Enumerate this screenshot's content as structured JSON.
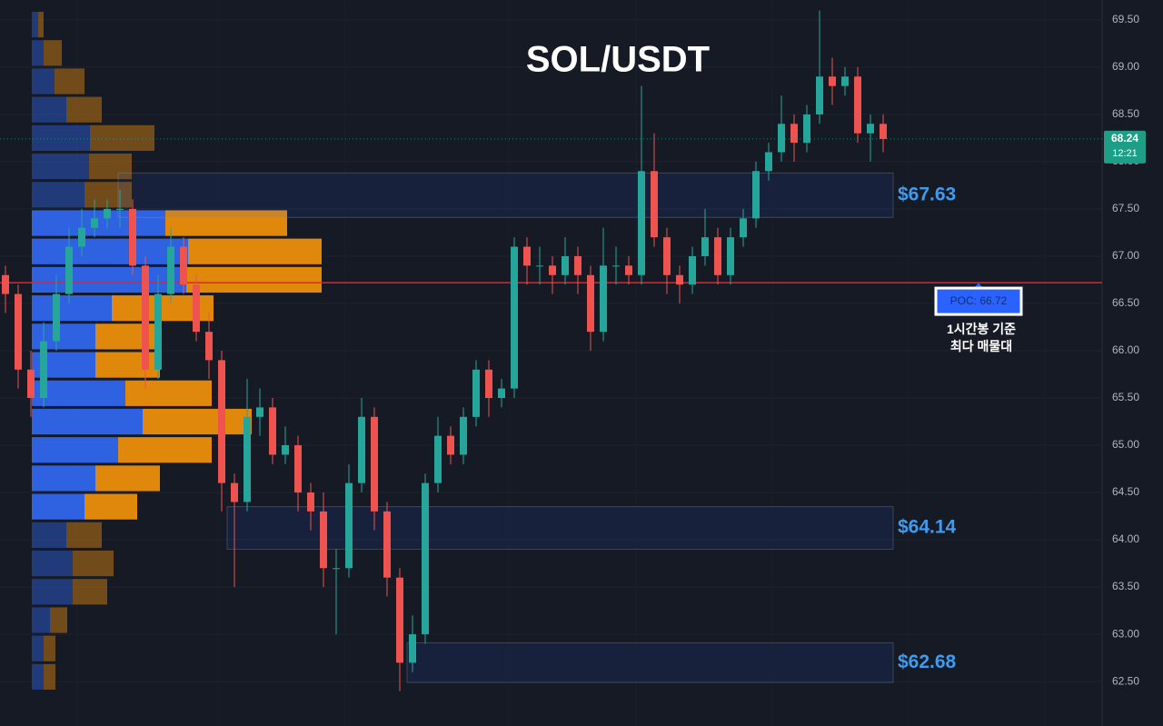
{
  "chart_data": {
    "type": "candlestick",
    "title": "SOL/USDT",
    "open": [
      66.8,
      66.6,
      65.8,
      65.5,
      66.1,
      66.6,
      67.1,
      67.3,
      67.4,
      67.5,
      67.5,
      66.9,
      65.8,
      66.6,
      67.1,
      66.7,
      66.2,
      65.9,
      64.6,
      64.4,
      65.3,
      65.4,
      64.9,
      65.0,
      64.5,
      64.3,
      63.7,
      63.7,
      64.6,
      65.3,
      64.3,
      63.6,
      62.7,
      63.0,
      64.6,
      65.1,
      64.9,
      65.3,
      65.8,
      65.5,
      65.6,
      67.1,
      66.9,
      66.9,
      66.8,
      67.0,
      66.8,
      66.2,
      66.9,
      66.9,
      66.8,
      67.9,
      67.2,
      66.8,
      66.7,
      67.0,
      67.2,
      66.8,
      67.2,
      67.4,
      67.9,
      68.1,
      68.4,
      68.2,
      68.5,
      68.9,
      68.8,
      68.9,
      68.3,
      68.4
    ],
    "high": [
      66.9,
      66.7,
      66.0,
      66.3,
      66.8,
      67.3,
      67.5,
      67.6,
      67.6,
      67.7,
      67.6,
      67.0,
      66.8,
      67.3,
      67.2,
      66.8,
      66.4,
      66.0,
      64.7,
      65.7,
      65.6,
      65.5,
      65.2,
      65.1,
      64.6,
      64.5,
      63.9,
      64.8,
      65.5,
      65.4,
      64.4,
      63.7,
      63.2,
      64.7,
      65.3,
      65.2,
      65.4,
      65.9,
      65.9,
      65.7,
      67.2,
      67.2,
      67.1,
      67.0,
      67.2,
      67.1,
      66.9,
      67.3,
      67.1,
      67.0,
      68.8,
      68.3,
      67.3,
      66.9,
      67.1,
      67.5,
      67.3,
      67.3,
      67.5,
      68.0,
      68.2,
      68.7,
      68.5,
      68.6,
      69.6,
      69.1,
      69.0,
      69.0,
      68.5,
      68.5
    ],
    "low": [
      66.4,
      65.6,
      65.3,
      65.4,
      66.0,
      66.5,
      67.0,
      67.2,
      67.3,
      67.3,
      66.8,
      65.6,
      65.7,
      66.5,
      66.6,
      66.1,
      65.7,
      64.3,
      63.5,
      64.3,
      65.1,
      64.8,
      64.8,
      64.3,
      64.1,
      63.5,
      63.0,
      63.6,
      64.5,
      64.1,
      63.4,
      62.4,
      62.6,
      62.9,
      64.5,
      64.8,
      64.8,
      65.2,
      65.3,
      65.4,
      65.5,
      66.7,
      66.7,
      66.6,
      66.7,
      66.6,
      66.0,
      66.1,
      66.7,
      66.7,
      66.7,
      67.1,
      66.6,
      66.5,
      66.6,
      66.9,
      66.7,
      66.7,
      67.1,
      67.3,
      67.8,
      68.0,
      68.0,
      68.1,
      68.4,
      68.6,
      68.7,
      68.2,
      68.0,
      68.1
    ],
    "close": [
      66.6,
      65.8,
      65.5,
      66.1,
      66.6,
      67.1,
      67.3,
      67.4,
      67.5,
      67.5,
      66.9,
      65.8,
      66.6,
      67.1,
      66.7,
      66.2,
      65.9,
      64.6,
      64.4,
      65.3,
      65.4,
      64.9,
      65.0,
      64.5,
      64.3,
      63.7,
      63.7,
      64.6,
      65.3,
      64.3,
      63.6,
      62.7,
      63.0,
      64.6,
      65.1,
      64.9,
      65.3,
      65.8,
      65.5,
      65.6,
      67.1,
      66.9,
      66.9,
      66.8,
      67.0,
      66.8,
      66.2,
      66.9,
      66.9,
      66.8,
      67.9,
      67.2,
      66.8,
      66.7,
      67.0,
      67.2,
      66.8,
      67.2,
      67.4,
      67.9,
      68.1,
      68.4,
      68.2,
      68.5,
      68.9,
      68.8,
      68.9,
      68.3,
      68.4,
      68.24
    ],
    "up_color": "#26a69a",
    "down_color": "#ef5350",
    "ylim": [
      62.03,
      69.71
    ],
    "yticks": [
      {
        "value": 69.5,
        "label": "69.50"
      },
      {
        "value": 69,
        "label": "69.00"
      },
      {
        "value": 68.5,
        "label": "68.50"
      },
      {
        "value": 68,
        "label": "68.00"
      },
      {
        "value": 67.5,
        "label": "67.50"
      },
      {
        "value": 67,
        "label": "67.00"
      },
      {
        "value": 66.5,
        "label": "66.50"
      },
      {
        "value": 66,
        "label": "66.00"
      },
      {
        "value": 65.5,
        "label": "65.50"
      },
      {
        "value": 65,
        "label": "65.00"
      },
      {
        "value": 64.5,
        "label": "64.50"
      },
      {
        "value": 64,
        "label": "64.00"
      },
      {
        "value": 63.5,
        "label": "63.50"
      },
      {
        "value": 63,
        "label": "63.00"
      },
      {
        "value": 62.5,
        "label": "62.50"
      }
    ],
    "grid": true,
    "last_price": 68.24,
    "countdown": "12:21",
    "poc": {
      "value": 66.72,
      "label": "POC: 66.72"
    },
    "poc_note": [
      "1시간봉 기준",
      "최다 매물대"
    ],
    "zones": [
      {
        "label": "$67.63",
        "top": 67.88,
        "bottom": 67.41
      },
      {
        "label": "$64.14",
        "top": 64.35,
        "bottom": 63.9
      },
      {
        "label": "$62.68",
        "top": 62.91,
        "bottom": 62.49
      }
    ],
    "volume_profile": {
      "bins": [
        69.6,
        69.3,
        69.0,
        68.7,
        68.4,
        68.1,
        67.8,
        67.5,
        67.2,
        66.9,
        66.6,
        66.3,
        66.0,
        65.7,
        65.4,
        65.1,
        64.8,
        64.5,
        64.2,
        63.9,
        63.6,
        63.3,
        63.0,
        62.7,
        62.4
      ],
      "buy": [
        7,
        13,
        25,
        38,
        64,
        63,
        58,
        147,
        172,
        170,
        88,
        70,
        70,
        103,
        122,
        95,
        70,
        58,
        38,
        45,
        45,
        20,
        13,
        13
      ],
      "sell": [
        6,
        20,
        33,
        39,
        71,
        47,
        52,
        134,
        147,
        149,
        112,
        70,
        71,
        95,
        120,
        103,
        71,
        58,
        39,
        45,
        38,
        19,
        13,
        13
      ],
      "value_area": [
        64.2,
        67.5
      ],
      "buy_color": "#2f62e0",
      "sell_color": "#e0880c"
    }
  }
}
